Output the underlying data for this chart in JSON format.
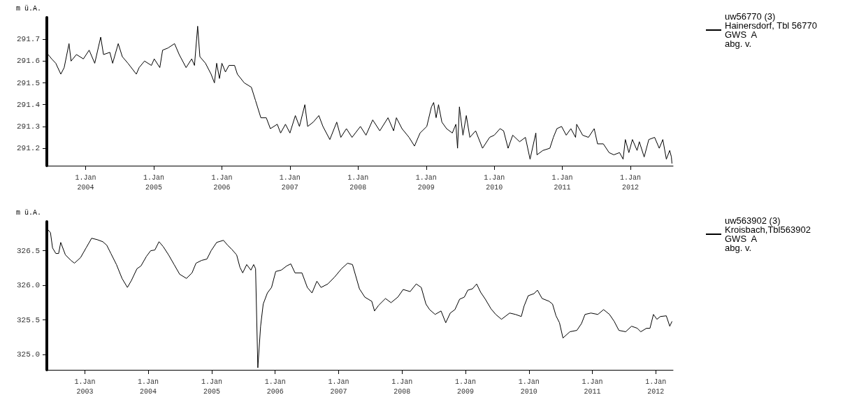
{
  "chart_data": [
    {
      "type": "line",
      "ylabel": "m ü.A.",
      "legend": "top right",
      "grid": false,
      "marker": "none",
      "line_style": "solid",
      "xlim": [
        "2003-06-07",
        "2012-08-17"
      ],
      "ylim": [
        291.12,
        291.8
      ],
      "xticks": [
        {
          "value": "2004-01-01",
          "label": "1.Jan\n2004"
        },
        {
          "value": "2005-01-01",
          "label": "1.Jan\n2005"
        },
        {
          "value": "2006-01-01",
          "label": "1.Jan\n2006"
        },
        {
          "value": "2007-01-01",
          "label": "1.Jan\n2007"
        },
        {
          "value": "2008-01-01",
          "label": "1.Jan\n2008"
        },
        {
          "value": "2009-01-01",
          "label": "1.Jan\n2009"
        },
        {
          "value": "2010-01-01",
          "label": "1.Jan\n2010"
        },
        {
          "value": "2011-01-01",
          "label": "1.Jan\n2011"
        },
        {
          "value": "2012-01-01",
          "label": "1.Jan\n2012"
        }
      ],
      "yticks": [
        291.2,
        291.3,
        291.4,
        291.5,
        291.6,
        291.7
      ],
      "series": [
        {
          "name": "uw56770 (3)\nHainersdorf, Tbl 56770\nGWS  A\nabg. v.",
          "color": "#000000",
          "x": [
            "2003-06-14",
            "2003-07-03",
            "2003-07-25",
            "2003-08-21",
            "2003-09-08",
            "2003-10-04",
            "2003-10-15",
            "2003-11-13",
            "2003-12-20",
            "2004-01-20",
            "2004-02-19",
            "2004-03-22",
            "2004-04-06",
            "2004-05-10",
            "2004-05-25",
            "2004-06-24",
            "2004-07-16",
            "2004-08-15",
            "2004-09-29",
            "2004-10-14",
            "2004-11-12",
            "2004-12-19",
            "2005-01-03",
            "2005-02-02",
            "2005-02-17",
            "2005-03-18",
            "2005-04-22",
            "2005-05-17",
            "2005-06-23",
            "2005-07-23",
            "2005-08-07",
            "2005-08-24",
            "2005-09-05",
            "2005-10-05",
            "2005-11-04",
            "2005-11-22",
            "2005-12-04",
            "2005-12-19",
            "2006-01-01",
            "2006-01-20",
            "2006-02-08",
            "2006-03-10",
            "2006-03-25",
            "2006-05-01",
            "2006-06-08",
            "2006-06-30",
            "2006-07-29",
            "2006-08-27",
            "2006-09-18",
            "2006-10-25",
            "2006-11-12",
            "2006-12-08",
            "2007-01-01",
            "2007-01-30",
            "2007-02-21",
            "2007-03-22",
            "2007-04-06",
            "2007-05-06",
            "2007-06-05",
            "2007-06-27",
            "2007-08-03",
            "2007-09-09",
            "2007-10-01",
            "2007-10-31",
            "2007-11-30",
            "2008-01-14",
            "2008-02-13",
            "2008-03-20",
            "2008-04-27",
            "2008-06-10",
            "2008-07-10",
            "2008-07-25",
            "2008-08-24",
            "2008-10-01",
            "2008-10-30",
            "2008-11-29",
            "2009-01-04",
            "2009-01-29",
            "2009-02-10",
            "2009-02-23",
            "2009-03-08",
            "2009-03-26",
            "2009-04-20",
            "2009-05-21",
            "2009-06-09",
            "2009-06-18",
            "2009-06-28",
            "2009-07-17",
            "2009-08-04",
            "2009-08-23",
            "2009-09-23",
            "2009-10-30",
            "2009-12-07",
            "2010-01-01",
            "2010-02-01",
            "2010-02-20",
            "2010-03-16",
            "2010-04-10",
            "2010-05-17",
            "2010-06-17",
            "2010-07-12",
            "2010-08-12",
            "2010-08-18",
            "2010-09-19",
            "2010-10-26",
            "2010-11-14",
            "2010-12-03",
            "2010-12-28",
            "2011-01-22",
            "2011-02-16",
            "2011-03-13",
            "2011-03-19",
            "2011-04-20",
            "2011-05-21",
            "2011-06-21",
            "2011-07-09",
            "2011-08-09",
            "2011-09-09",
            "2011-10-04",
            "2011-11-04",
            "2011-11-23",
            "2011-12-05",
            "2011-12-24",
            "2012-01-12",
            "2012-02-06",
            "2012-02-18",
            "2012-03-15",
            "2012-04-09",
            "2012-05-10",
            "2012-06-04",
            "2012-06-23",
            "2012-07-12",
            "2012-07-30",
            "2012-08-08",
            "2012-08-11"
          ],
          "values": [
            291.63,
            291.61,
            291.59,
            291.54,
            291.57,
            291.68,
            291.6,
            291.63,
            291.61,
            291.65,
            291.59,
            291.71,
            291.63,
            291.64,
            291.59,
            291.68,
            291.62,
            291.59,
            291.54,
            291.57,
            291.6,
            291.58,
            291.61,
            291.57,
            291.65,
            291.66,
            291.68,
            291.63,
            291.57,
            291.61,
            291.58,
            291.76,
            291.62,
            291.59,
            291.54,
            291.5,
            291.59,
            291.52,
            291.59,
            291.55,
            291.58,
            291.58,
            291.54,
            291.5,
            291.48,
            291.42,
            291.34,
            291.34,
            291.29,
            291.31,
            291.27,
            291.31,
            291.27,
            291.35,
            291.3,
            291.4,
            291.3,
            291.32,
            291.35,
            291.3,
            291.24,
            291.32,
            291.25,
            291.29,
            291.25,
            291.3,
            291.26,
            291.33,
            291.28,
            291.34,
            291.28,
            291.34,
            291.29,
            291.25,
            291.21,
            291.27,
            291.3,
            291.39,
            291.41,
            291.34,
            291.4,
            291.32,
            291.29,
            291.27,
            291.31,
            291.2,
            291.39,
            291.26,
            291.35,
            291.25,
            291.28,
            291.2,
            291.25,
            291.26,
            291.29,
            291.28,
            291.2,
            291.26,
            291.23,
            291.25,
            291.15,
            291.27,
            291.17,
            291.19,
            291.2,
            291.25,
            291.29,
            291.3,
            291.26,
            291.29,
            291.25,
            291.31,
            291.26,
            291.25,
            291.29,
            291.22,
            291.22,
            291.18,
            291.17,
            291.18,
            291.15,
            291.24,
            291.18,
            291.24,
            291.19,
            291.23,
            291.16,
            291.24,
            291.25,
            291.2,
            291.24,
            291.15,
            291.19,
            291.16,
            291.13
          ]
        }
      ]
    },
    {
      "type": "line",
      "ylabel": "m ü.A.",
      "legend": "top right",
      "grid": false,
      "marker": "none",
      "line_style": "solid",
      "xlim": [
        "2002-05-27",
        "2012-04-10"
      ],
      "ylim": [
        324.78,
        326.92
      ],
      "xticks": [
        {
          "value": "2003-01-01",
          "label": "1.Jan\n2003"
        },
        {
          "value": "2004-01-01",
          "label": "1.Jan\n2004"
        },
        {
          "value": "2005-01-01",
          "label": "1.Jan\n2005"
        },
        {
          "value": "2006-01-01",
          "label": "1.Jan\n2006"
        },
        {
          "value": "2007-01-01",
          "label": "1.Jan\n2007"
        },
        {
          "value": "2008-01-01",
          "label": "1.Jan\n2008"
        },
        {
          "value": "2009-01-01",
          "label": "1.Jan\n2009"
        },
        {
          "value": "2010-01-01",
          "label": "1.Jan\n2010"
        },
        {
          "value": "2011-01-01",
          "label": "1.Jan\n2011"
        },
        {
          "value": "2012-01-01",
          "label": "1.Jan\n2012"
        }
      ],
      "yticks": [
        {
          "value": 325,
          "label": "325.0"
        },
        325.5,
        {
          "value": 326,
          "label": "326.0"
        },
        326.5
      ],
      "series": [
        {
          "name": "uw563902 (3)\nKroisbach,Tbl563902\nGWS  A\nabg. v.",
          "color": "#000000",
          "x": [
            "2002-06-04",
            "2002-06-17",
            "2002-06-29",
            "2002-07-18",
            "2002-08-03",
            "2002-08-15",
            "2002-09-11",
            "2002-10-13",
            "2002-11-02",
            "2002-12-07",
            "2003-01-08",
            "2003-02-09",
            "2003-03-13",
            "2003-04-14",
            "2003-05-07",
            "2003-05-31",
            "2003-07-02",
            "2003-08-03",
            "2003-09-03",
            "2003-09-26",
            "2003-10-28",
            "2003-11-20",
            "2003-12-22",
            "2004-01-15",
            "2004-02-08",
            "2004-03-03",
            "2004-03-27",
            "2004-04-27",
            "2004-05-29",
            "2004-06-30",
            "2004-08-08",
            "2004-09-09",
            "2004-10-02",
            "2004-11-03",
            "2004-12-04",
            "2004-12-28",
            "2005-01-29",
            "2005-03-09",
            "2005-04-02",
            "2005-04-26",
            "2005-05-24",
            "2005-06-12",
            "2005-06-28",
            "2005-07-21",
            "2005-08-14",
            "2005-08-30",
            "2005-09-10",
            "2005-09-23",
            "2005-10-09",
            "2005-10-24",
            "2005-11-17",
            "2005-12-11",
            "2006-01-04",
            "2006-02-05",
            "2006-03-08",
            "2006-04-01",
            "2006-04-25",
            "2006-06-04",
            "2006-07-05",
            "2006-08-01",
            "2006-08-29",
            "2006-09-22",
            "2006-10-31",
            "2006-12-09",
            "2007-01-18",
            "2007-02-22",
            "2007-03-22",
            "2007-05-01",
            "2007-06-01",
            "2007-07-11",
            "2007-07-27",
            "2007-08-19",
            "2007-09-28",
            "2007-10-30",
            "2007-12-08",
            "2008-01-08",
            "2008-02-17",
            "2008-03-23",
            "2008-04-21",
            "2008-05-18",
            "2008-06-08",
            "2008-07-10",
            "2008-08-13",
            "2008-09-09",
            "2008-10-05",
            "2008-11-01",
            "2008-11-28",
            "2008-12-25",
            "2009-01-14",
            "2009-02-10",
            "2009-03-06",
            "2009-03-29",
            "2009-04-25",
            "2009-05-28",
            "2009-06-24",
            "2009-07-27",
            "2009-09-12",
            "2009-10-16",
            "2009-11-18",
            "2009-12-04",
            "2009-12-28",
            "2010-01-30",
            "2010-02-19",
            "2010-03-18",
            "2010-04-27",
            "2010-05-17",
            "2010-06-06",
            "2010-06-26",
            "2010-07-16",
            "2010-08-25",
            "2010-10-04",
            "2010-10-31",
            "2010-11-20",
            "2010-12-24",
            "2011-02-02",
            "2011-03-07",
            "2011-04-10",
            "2011-05-07",
            "2011-06-03",
            "2011-07-12",
            "2011-08-15",
            "2011-09-17",
            "2011-10-07",
            "2011-11-09",
            "2011-11-29",
            "2011-12-19",
            "2012-01-08",
            "2012-01-28",
            "2012-03-02",
            "2012-03-22",
            "2012-04-04"
          ],
          "values": [
            326.8,
            326.76,
            326.54,
            326.46,
            326.46,
            326.62,
            326.44,
            326.36,
            326.32,
            326.4,
            326.54,
            326.68,
            326.66,
            326.63,
            326.58,
            326.46,
            326.3,
            326.1,
            325.97,
            326.07,
            326.24,
            326.28,
            326.42,
            326.5,
            326.51,
            326.63,
            326.56,
            326.44,
            326.3,
            326.16,
            326.1,
            326.18,
            326.32,
            326.36,
            326.38,
            326.5,
            326.62,
            326.65,
            326.58,
            326.52,
            326.44,
            326.26,
            326.18,
            326.3,
            326.22,
            326.3,
            326.24,
            324.81,
            325.41,
            325.73,
            325.89,
            325.97,
            326.2,
            326.22,
            326.28,
            326.31,
            326.18,
            326.18,
            325.97,
            325.89,
            326.06,
            325.97,
            326.02,
            326.12,
            326.24,
            326.32,
            326.3,
            325.95,
            325.83,
            325.77,
            325.63,
            325.71,
            325.81,
            325.75,
            325.83,
            325.94,
            325.91,
            326.02,
            325.97,
            325.73,
            325.65,
            325.58,
            325.63,
            325.46,
            325.6,
            325.65,
            325.8,
            325.83,
            325.93,
            325.95,
            326.02,
            325.9,
            325.8,
            325.66,
            325.58,
            325.51,
            325.6,
            325.58,
            325.55,
            325.7,
            325.85,
            325.88,
            325.93,
            325.81,
            325.77,
            325.73,
            325.56,
            325.46,
            325.24,
            325.33,
            325.35,
            325.45,
            325.58,
            325.6,
            325.58,
            325.65,
            325.58,
            325.48,
            325.35,
            325.33,
            325.41,
            325.38,
            325.33,
            325.38,
            325.38,
            325.58,
            325.51,
            325.55,
            325.56,
            325.41,
            325.48
          ]
        }
      ]
    }
  ]
}
